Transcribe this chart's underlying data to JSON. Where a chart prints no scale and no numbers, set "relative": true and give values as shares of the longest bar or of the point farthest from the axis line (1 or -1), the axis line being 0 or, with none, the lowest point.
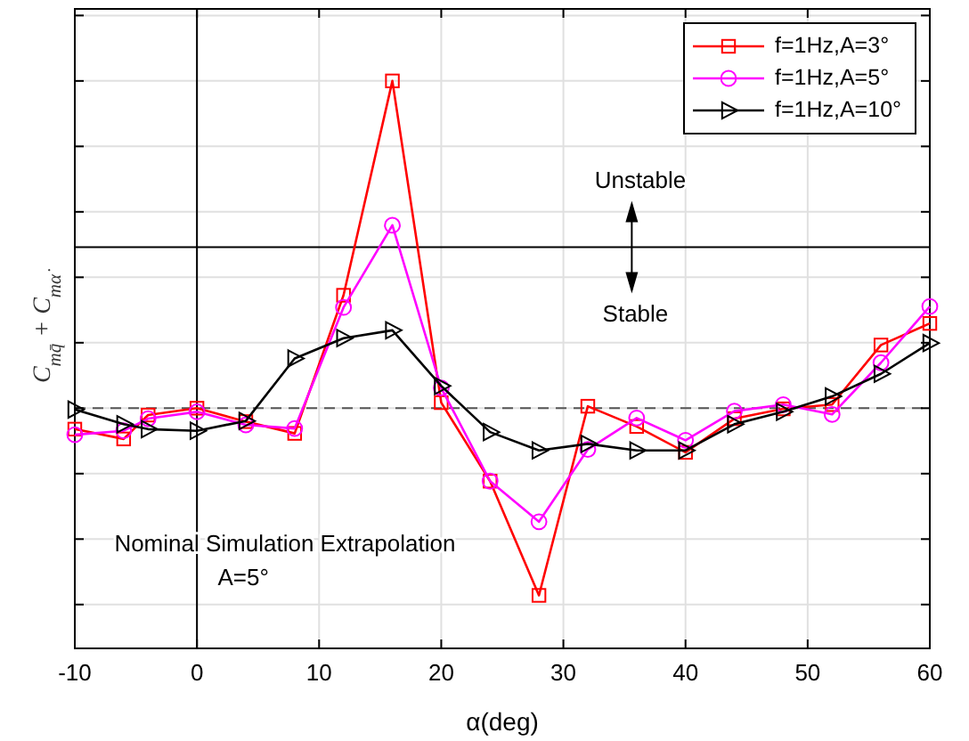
{
  "chart_data": {
    "type": "line",
    "relative": true,
    "xlabel": "α(deg)",
    "ylabel": "C$_{mq̄}$ + C$_{mα̇}$",
    "x": [
      -10,
      -6,
      -4,
      0,
      4,
      8,
      12,
      16,
      20,
      24,
      28,
      32,
      36,
      40,
      44,
      48,
      52,
      56,
      60
    ],
    "xlim": [
      -10,
      60
    ],
    "xticks": [
      -10,
      0,
      10,
      20,
      30,
      40,
      50,
      60
    ],
    "series": [
      {
        "name": "f=1Hz,A=3°",
        "color": "#ff0000",
        "marker": "square",
        "values": [
          -0.064,
          -0.094,
          -0.021,
          0,
          -0.041,
          -0.077,
          0.345,
          1,
          0.017,
          -0.223,
          -0.572,
          0.006,
          -0.056,
          -0.135,
          -0.032,
          -0.002,
          0.011,
          0.193,
          0.259
        ]
      },
      {
        "name": "f=1Hz,A=5°",
        "color": "#ff00ff",
        "marker": "circle",
        "values": [
          -0.081,
          -0.069,
          -0.032,
          -0.011,
          -0.051,
          -0.062,
          0.308,
          0.559,
          0.062,
          -0.223,
          -0.347,
          -0.126,
          -0.03,
          -0.098,
          -0.009,
          0.011,
          -0.019,
          0.139,
          0.311
        ]
      },
      {
        "name": "f=1Hz,A=10°",
        "color": "#000000",
        "marker": "triangle",
        "values": [
          -0.004,
          -0.049,
          -0.064,
          -0.069,
          -0.039,
          0.152,
          0.214,
          0.238,
          0.068,
          -0.073,
          -0.129,
          -0.109,
          -0.129,
          -0.129,
          -0.049,
          -0.011,
          0.036,
          0.105,
          0.199
        ]
      }
    ],
    "ref_lines": [
      {
        "axis": "y",
        "value": 0,
        "color": "#555555",
        "line_style": "dashed"
      },
      {
        "axis": "y",
        "value": 0.492,
        "color": "#000000",
        "line_style": "solid"
      },
      {
        "axis": "x",
        "value": 0,
        "color": "#000000",
        "line_style": "solid"
      }
    ],
    "annotations": [
      "Unstable",
      "Stable",
      "Nominal Simulation Extrapolation",
      "A=5°"
    ],
    "grid": true,
    "legend": "top right"
  }
}
